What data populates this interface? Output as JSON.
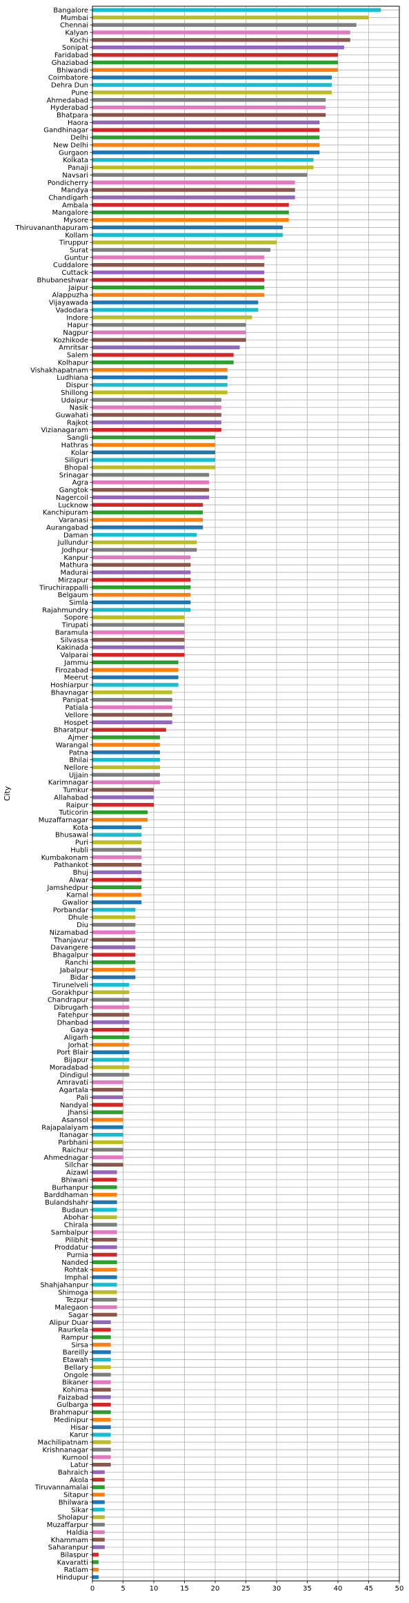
{
  "chart_data": {
    "type": "bar",
    "orientation": "horizontal",
    "title": "",
    "xlabel": "",
    "ylabel": "City",
    "xlim": [
      0,
      50
    ],
    "xticks": [
      0,
      5,
      10,
      15,
      20,
      25,
      30,
      35,
      40,
      45,
      50
    ],
    "grid": true,
    "legend": "none",
    "colors": [
      "#1f77b4",
      "#ff7f0e",
      "#2ca02c",
      "#d62728",
      "#9467bd",
      "#8c564b",
      "#e377c2",
      "#7f7f7f",
      "#bcbd22",
      "#17becf"
    ],
    "categories": [
      "Bangalore",
      "Mumbai",
      "Chennai",
      "Kalyan",
      "Kochi",
      "Sonipat",
      "Faridabad",
      "Ghaziabad",
      "Bhiwandi",
      "Coimbatore",
      "Dehra Dun",
      "Pune",
      "Ahmedabad",
      "Hyderabad",
      "Bhatpara",
      "Haora",
      "Gandhinagar",
      "Delhi",
      "New Delhi",
      "Gurgaon",
      "Kolkata",
      "Panaji",
      "Navsari",
      "Pondicherry",
      "Mandya",
      "Chandigarh",
      "Ambala",
      "Mangalore",
      "Mysore",
      "Thiruvananthapuram",
      "Kollam",
      "Tiruppur",
      "Surat",
      "Guntur",
      "Cuddalore",
      "Cuttack",
      "Bhubaneshwar",
      "Jaipur",
      "Alappuzha",
      "Vijayawada",
      "Vadodara",
      "Indore",
      "Hapur",
      "Nagpur",
      "Kozhikode",
      "Amritsar",
      "Salem",
      "Kolhapur",
      "Vishakhapatnam",
      "Ludhiana",
      "Dispur",
      "Shillong",
      "Udaipur",
      "Nasik",
      "Guwahati",
      "Rajkot",
      "Vizianagaram",
      "Sangli",
      "Hathras",
      "Kolar",
      "Siliguri",
      "Bhopal",
      "Srinagar",
      "Agra",
      "Gangtok",
      "Nagercoil",
      "Lucknow",
      "Kanchipuram",
      "Varanasi",
      "Aurangabad",
      "Daman",
      "Jullundur",
      "Jodhpur",
      "Kanpur",
      "Mathura",
      "Madurai",
      "Mirzapur",
      "Tiruchirappalli",
      "Belgaum",
      "Simla",
      "Rajahmundry",
      "Sopore",
      "Tirupati",
      "Baramula",
      "Silvassa",
      "Kakinada",
      "Valparai",
      "Jammu",
      "Firozabad",
      "Meerut",
      "Hoshiarpur",
      "Bhavnagar",
      "Panipat",
      "Patiala",
      "Vellore",
      "Hospet",
      "Bharatpur",
      "Ajmer",
      "Warangal",
      "Patna",
      "Bhilai",
      "Nellore",
      "Ujjain",
      "Karimnagar",
      "Tumkur",
      "Allahabad",
      "Raipur",
      "Tuticorin",
      "Muzaffarnagar",
      "Kota",
      "Bhusawal",
      "Puri",
      "Hubli",
      "Kumbakonam",
      "Pathankot",
      "Bhuj",
      "Alwar",
      "Jamshedpur",
      "Karnal",
      "Gwalior",
      "Porbandar",
      "Dhule",
      "Diu",
      "Nizamabad",
      "Thanjavur",
      "Davangere",
      "Bhagalpur",
      "Ranchi",
      "Jabalpur",
      "Bidar",
      "Tirunelveli",
      "Gorakhpur",
      "Chandrapur",
      "Dibrugarh",
      "Fatehpur",
      "Dhanbad",
      "Gaya",
      "Aligarh",
      "Jorhat",
      "Port Blair",
      "Bijapur",
      "Moradabad",
      "Dindigul",
      "Amravati",
      "Agartala",
      "Pali",
      "Nandyal",
      "Jhansi",
      "Asansol",
      "Rajapalaiyam",
      "Itanagar",
      "Parbhani",
      "Raichur",
      "Ahmednagar",
      "Silchar",
      "Aizawl",
      "Bhiwani",
      "Burhanpur",
      "Barddhaman",
      "Bulandshahr",
      "Budaun",
      "Abohar",
      "Chirala",
      "Sambalpur",
      "Pilibhit",
      "Proddatur",
      "Purnia",
      "Nanded",
      "Rohtak",
      "Imphal",
      "Shahjahanpur",
      "Shimoga",
      "Tezpur",
      "Malegaon",
      "Sagar",
      "Alipur Duar",
      "Raurkela",
      "Rampur",
      "Sirsa",
      "Bareilly",
      "Etawah",
      "Bellary",
      "Ongole",
      "Bikaner",
      "Kohima",
      "Faizabad",
      "Gulbarga",
      "Brahmapur",
      "Medinipur",
      "Hisar",
      "Karur",
      "Machilipatnam",
      "Krishnanagar",
      "Kurnool",
      "Latur",
      "Bahraich",
      "Akola",
      "Tiruvannamalai",
      "Sitapur",
      "Bhilwara",
      "Sikar",
      "Sholapur",
      "Muzaffarpur",
      "Haldia",
      "Khammam",
      "Saharanpur",
      "Bilaspur",
      "Kavaratti",
      "Ratlam",
      "Hindupur"
    ],
    "values": [
      47,
      45,
      43,
      42,
      42,
      41,
      40,
      40,
      40,
      39,
      39,
      39,
      38,
      38,
      38,
      37,
      37,
      37,
      37,
      37,
      36,
      36,
      35,
      33,
      33,
      33,
      32,
      32,
      32,
      31,
      31,
      30,
      29,
      28,
      28,
      28,
      28,
      28,
      28,
      27,
      27,
      26,
      25,
      25,
      25,
      24,
      23,
      23,
      22,
      22,
      22,
      22,
      21,
      21,
      21,
      21,
      21,
      20,
      20,
      20,
      20,
      20,
      19,
      19,
      19,
      19,
      18,
      18,
      18,
      18,
      17,
      17,
      17,
      16,
      16,
      16,
      16,
      16,
      16,
      16,
      16,
      15,
      15,
      15,
      15,
      15,
      15,
      14,
      14,
      14,
      14,
      13,
      13,
      13,
      13,
      13,
      12,
      11,
      11,
      11,
      11,
      11,
      11,
      11,
      10,
      10,
      10,
      9,
      9,
      8,
      8,
      8,
      8,
      8,
      8,
      8,
      8,
      8,
      8,
      8,
      7,
      7,
      7,
      7,
      7,
      7,
      7,
      7,
      7,
      7,
      6,
      6,
      6,
      6,
      6,
      6,
      6,
      6,
      6,
      6,
      6,
      6,
      6,
      5,
      5,
      5,
      5,
      5,
      5,
      5,
      5,
      5,
      5,
      5,
      5,
      4,
      4,
      4,
      4,
      4,
      4,
      4,
      4,
      4,
      4,
      4,
      4,
      4,
      4,
      4,
      4,
      4,
      4,
      4,
      4,
      3,
      3,
      3,
      3,
      3,
      3,
      3,
      3,
      3,
      3,
      3,
      3,
      3,
      3,
      3,
      3,
      3,
      3,
      3,
      3,
      2,
      2,
      2,
      2,
      2,
      2,
      2,
      2,
      2,
      2,
      2,
      1,
      1,
      1,
      1
    ]
  }
}
